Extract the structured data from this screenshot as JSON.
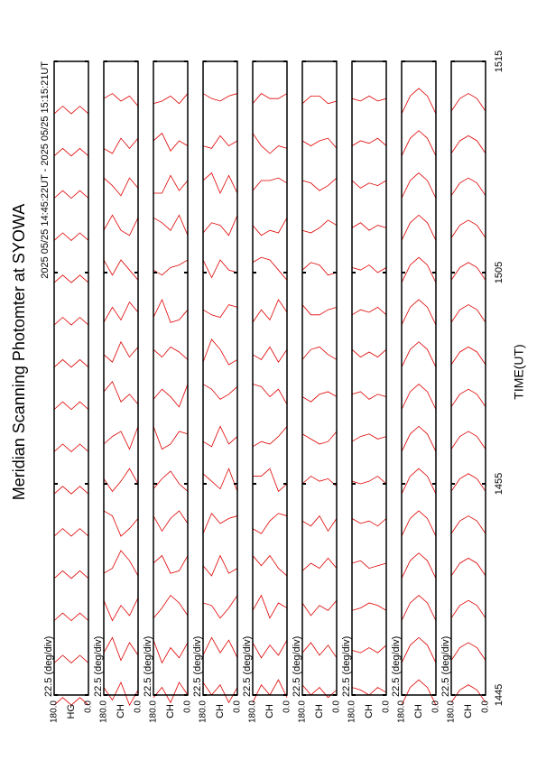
{
  "title": "Meridian Scanning Photomter at SYOWA",
  "subtitle": "2025 05/25 14:45:22UT - 2025 05/25 15:15:21UT",
  "xlabel": "TIME(UT)",
  "xlim": [
    885,
    915
  ],
  "xticks": [
    {
      "value": 885,
      "label": "1445"
    },
    {
      "value": 895,
      "label": "1455"
    },
    {
      "value": 905,
      "label": "1505"
    },
    {
      "value": 915,
      "label": "1515"
    }
  ],
  "chart_data": [
    {
      "type": "scan",
      "note": "22.5 (deg/div)",
      "ylabel": "HG",
      "color": "#e00000",
      "ylim": [
        0,
        180
      ],
      "yticks": [
        {
          "value": 0,
          "label": "0.0"
        },
        {
          "value": 180,
          "label": "180.0"
        }
      ],
      "angles": [
        0,
        45,
        90,
        135,
        180
      ],
      "x": [
        885,
        887,
        889,
        891,
        893,
        895,
        897,
        899,
        901,
        903,
        905,
        907,
        909,
        911,
        913
      ],
      "offsets": [
        [
          0.6,
          0.9,
          0.6,
          0.9,
          0.6
        ],
        [
          0.6,
          0.9,
          0.6,
          0.9,
          0.6
        ],
        [
          0.6,
          0.9,
          0.6,
          0.9,
          0.6
        ],
        [
          0.6,
          0.9,
          0.6,
          0.9,
          0.6
        ],
        [
          0.6,
          0.9,
          0.6,
          0.9,
          0.6
        ],
        [
          0.6,
          0.9,
          0.6,
          0.9,
          0.6
        ],
        [
          0.6,
          0.9,
          0.6,
          0.9,
          0.6
        ],
        [
          0.6,
          0.9,
          0.6,
          0.9,
          0.6
        ],
        [
          0.6,
          0.9,
          0.6,
          0.9,
          0.6
        ],
        [
          0.6,
          0.9,
          0.6,
          0.9,
          0.6
        ],
        [
          0.6,
          0.9,
          0.6,
          0.9,
          0.6
        ],
        [
          0.6,
          0.9,
          0.6,
          0.9,
          0.6
        ],
        [
          0.6,
          0.9,
          0.6,
          0.9,
          0.6
        ],
        [
          0.6,
          0.9,
          0.6,
          0.9,
          0.6
        ],
        [
          0.6,
          0.9,
          0.6,
          0.9,
          0.6
        ]
      ]
    },
    {
      "type": "scan",
      "note": "22.5 (deg/div)",
      "ylabel": "CH",
      "color": "#e00000",
      "ylim": [
        0,
        180
      ],
      "yticks": [
        {
          "value": 0,
          "label": "0.0"
        },
        {
          "value": 180,
          "label": "180.0"
        }
      ],
      "angles": [
        0,
        45,
        90,
        135,
        180
      ],
      "x": [
        885,
        887,
        889,
        891,
        893,
        895,
        897,
        899,
        901,
        903,
        905,
        907,
        909,
        911,
        913
      ],
      "offsets": [
        [
          1.2,
          0.6,
          1.5,
          0.8,
          1.3
        ],
        [
          0.9,
          1.4,
          0.7,
          1.6,
          1.0
        ],
        [
          1.5,
          0.8,
          1.2,
          0.6,
          1.4
        ],
        [
          0.7,
          1.3,
          1.7,
          1.0,
          0.8
        ],
        [
          1.3,
          0.9,
          0.6,
          1.4,
          1.6
        ],
        [
          1.0,
          1.6,
          1.1,
          0.7,
          1.2
        ],
        [
          1.6,
          0.7,
          1.4,
          1.2,
          0.9
        ],
        [
          0.8,
          1.2,
          0.9,
          1.7,
          1.3
        ],
        [
          1.4,
          1.0,
          1.6,
          0.8,
          1.1
        ],
        [
          1.1,
          1.5,
          0.8,
          1.3,
          0.7
        ],
        [
          0.7,
          1.1,
          1.5,
          0.9,
          1.5
        ],
        [
          1.5,
          0.8,
          1.0,
          1.6,
          1.0
        ],
        [
          1.0,
          1.4,
          0.7,
          1.1,
          1.4
        ],
        [
          1.3,
          0.9,
          1.3,
          0.7,
          0.9
        ],
        [
          0.9,
          1.3,
          1.1,
          1.4,
          1.2
        ]
      ]
    },
    {
      "type": "scan",
      "note": "22.5 (deg/div)",
      "ylabel": "CH",
      "color": "#e00000",
      "ylim": [
        0,
        180
      ],
      "yticks": [
        {
          "value": 0,
          "label": "0.0"
        },
        {
          "value": 180,
          "label": "180.0"
        }
      ],
      "angles": [
        0,
        45,
        90,
        135,
        180
      ],
      "x": [
        885,
        887,
        889,
        891,
        893,
        895,
        897,
        899,
        901,
        903,
        905,
        907,
        909,
        911,
        913
      ],
      "offsets": [
        [
          1.0,
          1.5,
          0.7,
          1.3,
          0.9
        ],
        [
          1.4,
          0.8,
          1.2,
          0.6,
          1.5
        ],
        [
          0.8,
          1.3,
          1.6,
          1.1,
          0.7
        ],
        [
          1.5,
          0.9,
          0.8,
          1.5,
          1.2
        ],
        [
          1.1,
          1.6,
          1.3,
          0.8,
          1.4
        ],
        [
          0.7,
          1.0,
          1.5,
          1.2,
          0.8
        ],
        [
          1.3,
          1.4,
          0.9,
          0.7,
          1.6
        ],
        [
          1.6,
          0.7,
          1.1,
          1.4,
          1.0
        ],
        [
          0.9,
          1.2,
          1.4,
          1.0,
          1.3
        ],
        [
          1.2,
          0.8,
          0.7,
          1.6,
          0.9
        ],
        [
          1.5,
          1.3,
          1.2,
          0.9,
          1.1
        ],
        [
          0.8,
          1.6,
          1.0,
          1.3,
          1.5
        ],
        [
          1.3,
          0.9,
          1.5,
          0.8,
          0.8
        ],
        [
          1.0,
          1.2,
          0.8,
          1.5,
          1.2
        ],
        [
          1.4,
          1.0,
          1.3,
          1.1,
          1.0
        ]
      ]
    },
    {
      "type": "scan",
      "note": "22.5 (deg/div)",
      "ylabel": "CH",
      "color": "#e00000",
      "ylim": [
        0,
        180
      ],
      "yticks": [
        {
          "value": 0,
          "label": "0.0"
        },
        {
          "value": 180,
          "label": "180.0"
        }
      ],
      "angles": [
        0,
        45,
        90,
        135,
        180
      ],
      "x": [
        885,
        887,
        889,
        891,
        893,
        895,
        897,
        899,
        901,
        903,
        905,
        907,
        909,
        911,
        913
      ],
      "offsets": [
        [
          1.3,
          0.7,
          1.4,
          1.0,
          1.5
        ],
        [
          0.8,
          1.5,
          1.0,
          1.6,
          0.9
        ],
        [
          1.6,
          1.1,
          0.7,
          1.2,
          1.3
        ],
        [
          1.0,
          0.8,
          1.5,
          0.7,
          1.1
        ],
        [
          1.4,
          1.3,
          1.1,
          1.5,
          0.7
        ],
        [
          0.7,
          1.6,
          0.8,
          1.1,
          1.4
        ],
        [
          1.2,
          0.9,
          1.6,
          0.8,
          1.0
        ],
        [
          1.5,
          1.2,
          1.0,
          1.4,
          1.6
        ],
        [
          0.9,
          0.7,
          1.3,
          1.7,
          0.8
        ],
        [
          1.3,
          1.4,
          0.9,
          1.0,
          1.2
        ],
        [
          1.0,
          1.1,
          1.5,
          0.8,
          1.5
        ],
        [
          1.6,
          0.8,
          1.2,
          1.3,
          0.9
        ],
        [
          0.8,
          1.5,
          0.8,
          1.6,
          1.3
        ],
        [
          1.2,
          1.0,
          1.4,
          0.9,
          1.0
        ],
        [
          1.4,
          1.3,
          1.1,
          1.2,
          1.4
        ]
      ]
    },
    {
      "type": "scan",
      "note": "22.5 (deg/div)",
      "ylabel": "CH",
      "color": "#e00000",
      "ylim": [
        0,
        180
      ],
      "yticks": [
        {
          "value": 0,
          "label": "0.0"
        },
        {
          "value": 180,
          "label": "180.0"
        }
      ],
      "angles": [
        0,
        45,
        90,
        135,
        180
      ],
      "x": [
        885,
        887,
        889,
        891,
        893,
        895,
        897,
        899,
        901,
        903,
        905,
        907,
        909,
        911,
        913
      ],
      "offsets": [
        [
          0.9,
          1.6,
          1.0,
          1.4,
          0.7
        ],
        [
          1.5,
          0.9,
          1.3,
          0.8,
          1.4
        ],
        [
          1.1,
          1.3,
          0.7,
          1.6,
          1.0
        ],
        [
          0.7,
          1.0,
          1.5,
          1.1,
          1.5
        ],
        [
          1.4,
          1.5,
          1.2,
          0.7,
          0.9
        ],
        [
          1.0,
          0.7,
          1.6,
          1.3,
          1.3
        ],
        [
          1.6,
          1.2,
          0.9,
          1.0,
          0.8
        ],
        [
          0.8,
          1.4,
          1.1,
          1.5,
          1.6
        ],
        [
          1.3,
          0.8,
          1.4,
          0.9,
          1.1
        ],
        [
          1.1,
          1.6,
          0.8,
          1.2,
          0.7
        ],
        [
          0.7,
          1.1,
          1.5,
          1.6,
          1.4
        ],
        [
          1.5,
          0.9,
          1.0,
          0.8,
          1.2
        ],
        [
          1.2,
          1.4,
          1.3,
          1.3,
          0.9
        ],
        [
          0.9,
          1.0,
          0.7,
          1.0,
          1.5
        ],
        [
          1.4,
          1.2,
          1.2,
          1.4,
          1.0
        ]
      ]
    },
    {
      "type": "scan",
      "note": "22.5 (deg/div)",
      "ylabel": "CH",
      "color": "#e00000",
      "ylim": [
        0,
        180
      ],
      "yticks": [
        {
          "value": 0,
          "label": "0.0"
        },
        {
          "value": 180,
          "label": "180.0"
        }
      ],
      "angles": [
        0,
        45,
        90,
        135,
        180
      ],
      "x": [
        885,
        887,
        889,
        891,
        893,
        895,
        897,
        899,
        901,
        903,
        905,
        907,
        909,
        911,
        913
      ],
      "offsets": [
        [
          1.2,
          0.9,
          1.3,
          1.0,
          1.4
        ],
        [
          0.8,
          1.3,
          0.9,
          1.4,
          1.0
        ],
        [
          1.4,
          1.0,
          1.2,
          0.8,
          1.3
        ],
        [
          1.0,
          1.4,
          1.0,
          1.2,
          0.9
        ],
        [
          1.3,
          0.8,
          1.4,
          1.0,
          1.2
        ],
        [
          0.9,
          1.2,
          1.1,
          1.3,
          1.0
        ],
        [
          1.4,
          1.0,
          0.9,
          1.1,
          1.3
        ],
        [
          1.1,
          1.3,
          1.2,
          0.9,
          1.1
        ],
        [
          0.9,
          1.1,
          1.4,
          1.3,
          0.9
        ],
        [
          1.3,
          1.2,
          1.0,
          1.0,
          1.4
        ],
        [
          1.0,
          0.9,
          1.3,
          1.4,
          1.1
        ],
        [
          1.2,
          1.4,
          1.1,
          0.9,
          1.0
        ],
        [
          1.4,
          1.1,
          0.9,
          1.2,
          1.3
        ],
        [
          0.9,
          1.3,
          1.2,
          1.0,
          1.2
        ],
        [
          1.1,
          1.0,
          1.3,
          1.3,
          1.0
        ]
      ]
    },
    {
      "type": "scan",
      "note": "22.5 (deg/div)",
      "ylabel": "CH",
      "color": "#e00000",
      "ylim": [
        0,
        180
      ],
      "yticks": [
        {
          "value": 0,
          "label": "0.0"
        },
        {
          "value": 180,
          "label": "180.0"
        }
      ],
      "angles": [
        0,
        45,
        90,
        135,
        180
      ],
      "x": [
        885,
        887,
        889,
        891,
        893,
        895,
        897,
        899,
        901,
        903,
        905,
        907,
        909,
        911,
        913
      ],
      "offsets": [
        [
          1.1,
          1.3,
          1.0,
          1.2,
          1.3
        ],
        [
          1.3,
          1.0,
          1.2,
          1.0,
          1.1
        ],
        [
          1.0,
          1.2,
          1.3,
          1.1,
          1.0
        ],
        [
          1.2,
          1.1,
          1.0,
          1.3,
          1.2
        ],
        [
          1.3,
          1.0,
          1.2,
          1.1,
          1.3
        ],
        [
          1.0,
          1.3,
          1.1,
          1.0,
          1.1
        ],
        [
          1.2,
          1.1,
          1.3,
          1.2,
          1.0
        ],
        [
          1.1,
          1.2,
          1.0,
          1.3,
          1.2
        ],
        [
          1.3,
          1.0,
          1.2,
          1.0,
          1.3
        ],
        [
          1.0,
          1.3,
          1.1,
          1.2,
          1.0
        ],
        [
          1.2,
          1.0,
          1.3,
          1.1,
          1.2
        ],
        [
          1.1,
          1.2,
          1.0,
          1.3,
          1.1
        ],
        [
          1.3,
          1.1,
          1.2,
          1.0,
          1.3
        ],
        [
          1.0,
          1.3,
          1.1,
          1.2,
          1.0
        ],
        [
          1.2,
          1.1,
          1.3,
          1.1,
          1.2
        ]
      ]
    },
    {
      "type": "scan",
      "note": "22.5 (deg/div)",
      "ylabel": "CH",
      "color": "#e00000",
      "ylim": [
        0,
        180
      ],
      "yticks": [
        {
          "value": 0,
          "label": "0.0"
        },
        {
          "value": 180,
          "label": "180.0"
        }
      ],
      "angles": [
        0,
        45,
        90,
        135,
        180
      ],
      "x": [
        885,
        887,
        889,
        891,
        893,
        895,
        897,
        899,
        901,
        903,
        905,
        907,
        909,
        911,
        913
      ],
      "offsets": [
        [
          0.6,
          1.3,
          1.6,
          1.3,
          0.6
        ],
        [
          0.6,
          1.3,
          1.6,
          1.3,
          0.6
        ],
        [
          0.6,
          1.3,
          1.6,
          1.3,
          0.6
        ],
        [
          0.6,
          1.3,
          1.6,
          1.3,
          0.6
        ],
        [
          0.6,
          1.3,
          1.6,
          1.3,
          0.6
        ],
        [
          0.6,
          1.3,
          1.6,
          1.3,
          0.6
        ],
        [
          0.6,
          1.3,
          1.6,
          1.3,
          0.6
        ],
        [
          0.6,
          1.3,
          1.6,
          1.3,
          0.6
        ],
        [
          0.6,
          1.3,
          1.6,
          1.3,
          0.6
        ],
        [
          0.6,
          1.3,
          1.6,
          1.3,
          0.6
        ],
        [
          0.6,
          1.3,
          1.6,
          1.3,
          0.6
        ],
        [
          0.6,
          1.3,
          1.6,
          1.3,
          0.6
        ],
        [
          0.6,
          1.3,
          1.6,
          1.3,
          0.6
        ],
        [
          0.6,
          1.3,
          1.6,
          1.3,
          0.6
        ],
        [
          0.6,
          1.3,
          1.6,
          1.3,
          0.6
        ]
      ]
    },
    {
      "type": "scan",
      "note": "22.5 (deg/div)",
      "ylabel": "CH",
      "color": "#e00000",
      "ylim": [
        0,
        180
      ],
      "yticks": [
        {
          "value": 0,
          "label": "0.0"
        },
        {
          "value": 180,
          "label": "180.0"
        }
      ],
      "angles": [
        0,
        45,
        90,
        135,
        180
      ],
      "x": [
        885,
        887,
        889,
        891,
        893,
        895,
        897,
        899,
        901,
        903,
        905,
        907,
        909,
        911,
        913
      ],
      "offsets": [
        [
          0.7,
          1.2,
          1.4,
          1.2,
          0.7
        ],
        [
          0.7,
          1.2,
          1.4,
          1.2,
          0.7
        ],
        [
          0.7,
          1.2,
          1.4,
          1.2,
          0.7
        ],
        [
          0.7,
          1.2,
          1.4,
          1.2,
          0.7
        ],
        [
          0.7,
          1.2,
          1.4,
          1.2,
          0.7
        ],
        [
          0.7,
          1.2,
          1.4,
          1.2,
          0.7
        ],
        [
          0.7,
          1.2,
          1.4,
          1.2,
          0.7
        ],
        [
          0.7,
          1.2,
          1.4,
          1.2,
          0.7
        ],
        [
          0.7,
          1.2,
          1.4,
          1.2,
          0.7
        ],
        [
          0.7,
          1.2,
          1.4,
          1.2,
          0.7
        ],
        [
          0.7,
          1.2,
          1.4,
          1.2,
          0.7
        ],
        [
          0.7,
          1.2,
          1.4,
          1.2,
          0.7
        ],
        [
          0.7,
          1.2,
          1.4,
          1.2,
          0.7
        ],
        [
          0.7,
          1.2,
          1.4,
          1.2,
          0.7
        ],
        [
          0.7,
          1.2,
          1.4,
          1.2,
          0.7
        ]
      ]
    }
  ]
}
